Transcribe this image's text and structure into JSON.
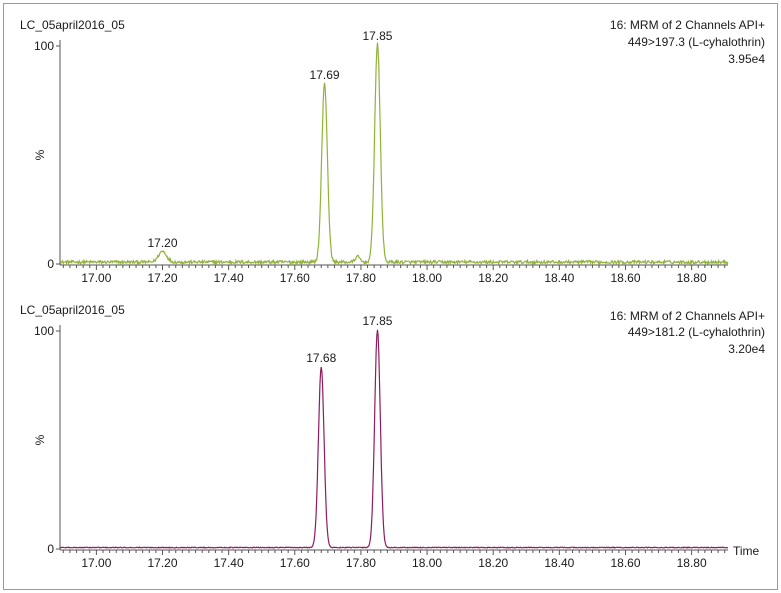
{
  "chart_data": [
    {
      "type": "line",
      "sample_name": "LC_05april2016_05",
      "channel_title": "16: MRM of 2 Channels API+",
      "transition": "449>197.3 (L-cyhalothrin)",
      "intensity": "3.95e4",
      "ylabel": "%",
      "xlabel": "",
      "xlim": [
        16.89,
        18.91
      ],
      "ylim": [
        0,
        100
      ],
      "x_ticks": [
        "17.00",
        "17.20",
        "17.40",
        "17.60",
        "17.80",
        "18.00",
        "18.20",
        "18.40",
        "18.60",
        "18.80"
      ],
      "y_ticks": [
        "0",
        "100"
      ],
      "color": "#8fb339",
      "peaks": [
        {
          "x": 17.2,
          "y": 5,
          "label": "17.20"
        },
        {
          "x": 17.69,
          "y": 82,
          "label": "17.69"
        },
        {
          "x": 17.85,
          "y": 100,
          "label": "17.85"
        }
      ]
    },
    {
      "type": "line",
      "sample_name": "LC_05april2016_05",
      "channel_title": "16: MRM of 2 Channels API+",
      "transition": "449>181.2 (L-cyhalothrin)",
      "intensity": "3.20e4",
      "ylabel": "%",
      "xlabel": "Time",
      "xlim": [
        16.89,
        18.91
      ],
      "ylim": [
        0,
        100
      ],
      "x_ticks": [
        "17.00",
        "17.20",
        "17.40",
        "17.60",
        "17.80",
        "18.00",
        "18.20",
        "18.40",
        "18.60",
        "18.80"
      ],
      "y_ticks": [
        "0",
        "100"
      ],
      "color": "#8e1c5e",
      "peaks": [
        {
          "x": 17.68,
          "y": 83,
          "label": "17.68"
        },
        {
          "x": 17.85,
          "y": 100,
          "label": "17.85"
        }
      ]
    }
  ]
}
